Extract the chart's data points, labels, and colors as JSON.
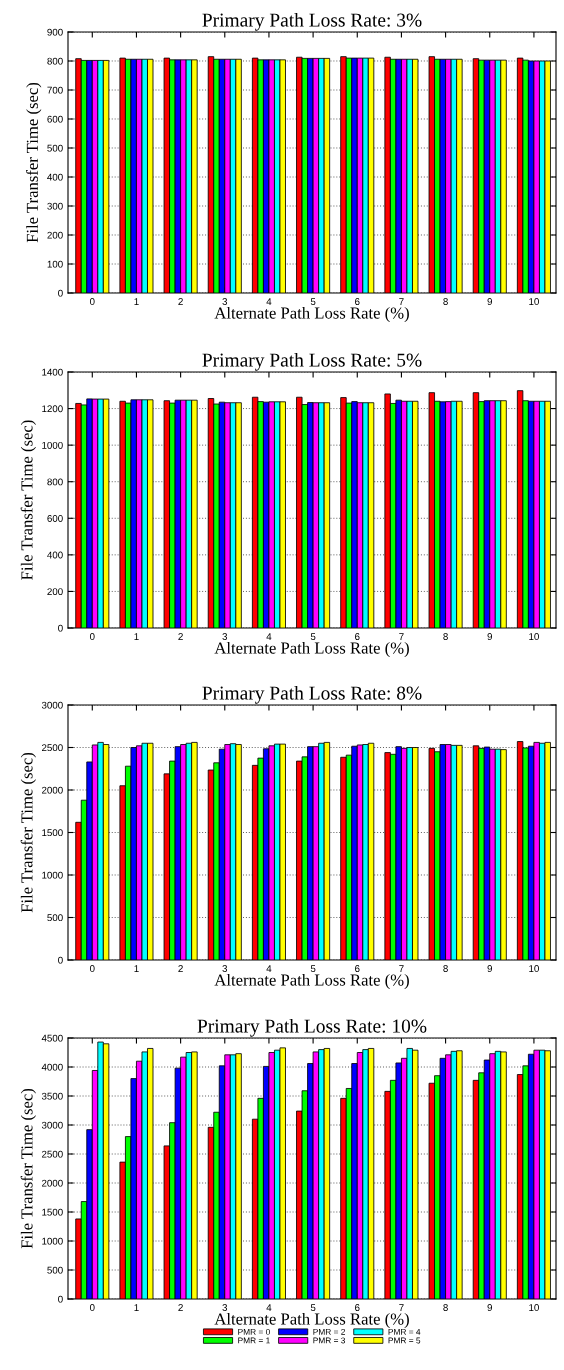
{
  "chart_data": [
    {
      "type": "bar",
      "title": "Primary Path Loss Rate: 3%",
      "xlabel": "Alternate Path Loss Rate (%)",
      "ylabel": "File Transfer Time (sec)",
      "categories": [
        "0",
        "1",
        "2",
        "3",
        "4",
        "5",
        "6",
        "7",
        "8",
        "9",
        "10"
      ],
      "ylim": [
        0,
        900
      ],
      "yticks": [
        0,
        100,
        200,
        300,
        400,
        500,
        600,
        700,
        800,
        900
      ],
      "grid": "y",
      "legend": false,
      "series": [
        {
          "color": "#ff0000",
          "values": [
            808,
            810,
            810,
            815,
            810,
            813,
            815,
            813,
            815,
            808,
            810
          ]
        },
        {
          "color": "#00ff00",
          "values": [
            802,
            806,
            804,
            806,
            804,
            809,
            810,
            806,
            806,
            803,
            803
          ]
        },
        {
          "color": "#0000ff",
          "values": [
            802,
            806,
            804,
            806,
            804,
            809,
            810,
            806,
            806,
            803,
            800
          ]
        },
        {
          "color": "#ff00ff",
          "values": [
            802,
            806,
            804,
            806,
            804,
            809,
            810,
            806,
            806,
            803,
            800
          ]
        },
        {
          "color": "#00ffff",
          "values": [
            802,
            806,
            804,
            806,
            804,
            809,
            810,
            806,
            806,
            803,
            800
          ]
        },
        {
          "color": "#ffff00",
          "values": [
            802,
            806,
            804,
            806,
            804,
            809,
            810,
            806,
            806,
            803,
            800
          ]
        }
      ]
    },
    {
      "type": "bar",
      "title": "Primary Path Loss Rate: 5%",
      "xlabel": "Alternate Path Loss Rate (%)",
      "ylabel": "File Transfer Time (sec)",
      "categories": [
        "0",
        "1",
        "2",
        "3",
        "4",
        "5",
        "6",
        "7",
        "8",
        "9",
        "10"
      ],
      "ylim": [
        0,
        1400
      ],
      "yticks": [
        0,
        200,
        400,
        600,
        800,
        1000,
        1200,
        1400
      ],
      "grid": "y",
      "legend": false,
      "series": [
        {
          "color": "#ff0000",
          "values": [
            1228,
            1240,
            1243,
            1255,
            1262,
            1262,
            1260,
            1280,
            1287,
            1287,
            1298
          ]
        },
        {
          "color": "#00ff00",
          "values": [
            1220,
            1230,
            1230,
            1225,
            1238,
            1222,
            1230,
            1228,
            1240,
            1238,
            1243
          ]
        },
        {
          "color": "#0000ff",
          "values": [
            1253,
            1248,
            1246,
            1235,
            1235,
            1233,
            1238,
            1246,
            1237,
            1243,
            1240
          ]
        },
        {
          "color": "#ff00ff",
          "values": [
            1252,
            1248,
            1246,
            1232,
            1237,
            1232,
            1232,
            1240,
            1238,
            1243,
            1240
          ]
        },
        {
          "color": "#00ffff",
          "values": [
            1252,
            1248,
            1246,
            1232,
            1237,
            1232,
            1232,
            1240,
            1240,
            1243,
            1240
          ]
        },
        {
          "color": "#ffff00",
          "values": [
            1252,
            1248,
            1246,
            1232,
            1237,
            1232,
            1232,
            1240,
            1240,
            1243,
            1240
          ]
        }
      ]
    },
    {
      "type": "bar",
      "title": "Primary Path Loss Rate: 8%",
      "xlabel": "Alternate Path Loss Rate (%)",
      "ylabel": "File Transfer Time (sec)",
      "categories": [
        "0",
        "1",
        "2",
        "3",
        "4",
        "5",
        "6",
        "7",
        "8",
        "9",
        "10"
      ],
      "ylim": [
        0,
        3000
      ],
      "yticks": [
        0,
        500,
        1000,
        1500,
        2000,
        2500,
        3000
      ],
      "grid": "y",
      "legend": false,
      "series": [
        {
          "color": "#ff0000",
          "values": [
            1620,
            2050,
            2190,
            2235,
            2290,
            2340,
            2385,
            2440,
            2490,
            2520,
            2570
          ]
        },
        {
          "color": "#00ff00",
          "values": [
            1880,
            2280,
            2340,
            2320,
            2375,
            2390,
            2410,
            2420,
            2450,
            2490,
            2495
          ]
        },
        {
          "color": "#0000ff",
          "values": [
            2330,
            2500,
            2510,
            2480,
            2485,
            2510,
            2515,
            2510,
            2535,
            2505,
            2515
          ]
        },
        {
          "color": "#ff00ff",
          "values": [
            2530,
            2520,
            2535,
            2535,
            2520,
            2510,
            2530,
            2490,
            2535,
            2480,
            2560
          ]
        },
        {
          "color": "#00ffff",
          "values": [
            2560,
            2550,
            2550,
            2545,
            2540,
            2550,
            2535,
            2500,
            2525,
            2480,
            2550
          ]
        },
        {
          "color": "#ffff00",
          "values": [
            2535,
            2550,
            2560,
            2535,
            2540,
            2560,
            2550,
            2500,
            2525,
            2475,
            2560
          ]
        }
      ]
    },
    {
      "type": "bar",
      "title": "Primary Path Loss Rate: 10%",
      "xlabel": "Alternate Path Loss Rate (%)",
      "ylabel": "File Transfer Time (sec)",
      "categories": [
        "0",
        "1",
        "2",
        "3",
        "4",
        "5",
        "6",
        "7",
        "8",
        "9",
        "10"
      ],
      "ylim": [
        0,
        4500
      ],
      "yticks": [
        0,
        500,
        1000,
        1500,
        2000,
        2500,
        3000,
        3500,
        4000,
        4500
      ],
      "grid": "y",
      "legend": "bottom",
      "series": [
        {
          "name": "PMR = 0",
          "color": "#ff0000",
          "values": [
            1380,
            2360,
            2640,
            2960,
            3100,
            3240,
            3460,
            3580,
            3720,
            3770,
            3870
          ]
        },
        {
          "name": "PMR = 1",
          "color": "#00ff00",
          "values": [
            1680,
            2800,
            3040,
            3220,
            3460,
            3590,
            3630,
            3770,
            3850,
            3900,
            4020
          ]
        },
        {
          "name": "PMR = 2",
          "color": "#0000ff",
          "values": [
            2920,
            3800,
            3980,
            4020,
            4010,
            4060,
            4060,
            4070,
            4150,
            4120,
            4220
          ]
        },
        {
          "name": "PMR = 3",
          "color": "#ff00ff",
          "values": [
            3940,
            4100,
            4170,
            4210,
            4250,
            4260,
            4250,
            4150,
            4210,
            4230,
            4290
          ]
        },
        {
          "name": "PMR = 4",
          "color": "#00ffff",
          "values": [
            4430,
            4260,
            4250,
            4210,
            4290,
            4300,
            4300,
            4320,
            4270,
            4270,
            4290
          ]
        },
        {
          "name": "PMR = 5",
          "color": "#ffff00",
          "values": [
            4400,
            4320,
            4260,
            4230,
            4330,
            4320,
            4320,
            4290,
            4280,
            4260,
            4280
          ]
        }
      ]
    }
  ]
}
